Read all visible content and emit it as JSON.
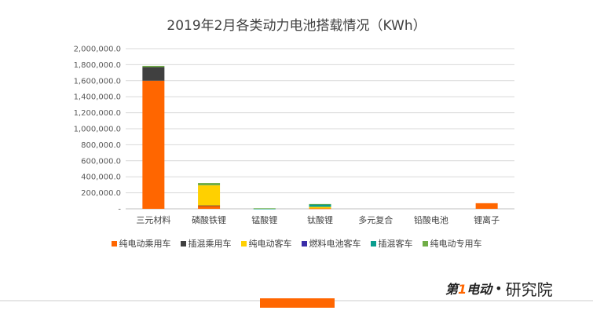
{
  "chart_data": {
    "type": "bar",
    "stacked": true,
    "title": "2019年2月各类动力电池搭载情况（KWh）",
    "categories": [
      "三元材料",
      "磷酸铁锂",
      "锰酸锂",
      "钛酸锂",
      "多元复合",
      "铅酸电池",
      "锂离子"
    ],
    "series": [
      {
        "name": "纯电动乘用车",
        "color": "#ff6600",
        "values": [
          1600000,
          40000,
          0,
          5000,
          0,
          0,
          70000
        ]
      },
      {
        "name": "插混乘用车",
        "color": "#404040",
        "values": [
          170000,
          3000,
          0,
          0,
          0,
          0,
          0
        ]
      },
      {
        "name": "纯电动客车",
        "color": "#ffd000",
        "values": [
          0,
          250000,
          0,
          20000,
          0,
          0,
          0
        ]
      },
      {
        "name": "燃料电池客车",
        "color": "#3b2da8",
        "values": [
          0,
          0,
          0,
          0,
          0,
          0,
          0
        ]
      },
      {
        "name": "插混客车",
        "color": "#0a9e8f",
        "values": [
          0,
          0,
          2000,
          30000,
          0,
          0,
          0
        ]
      },
      {
        "name": "纯电动专用车",
        "color": "#70ad47",
        "values": [
          15000,
          30000,
          5000,
          5000,
          0,
          0,
          0
        ]
      }
    ],
    "ylim": [
      0,
      2000000
    ],
    "yticks": [
      "-",
      "200,000.0",
      "400,000.0",
      "600,000.0",
      "800,000.0",
      "1,000,000.0",
      "1,200,000.0",
      "1,400,000.0",
      "1,600,000.0",
      "1,800,000.0",
      "2,000,000.0"
    ],
    "grid": true,
    "legend_position": "bottom"
  },
  "brand": {
    "logo_text_a": "第",
    "logo_text_b": "1",
    "logo_text_c": "电动",
    "separator": "•",
    "name": "研究院"
  }
}
